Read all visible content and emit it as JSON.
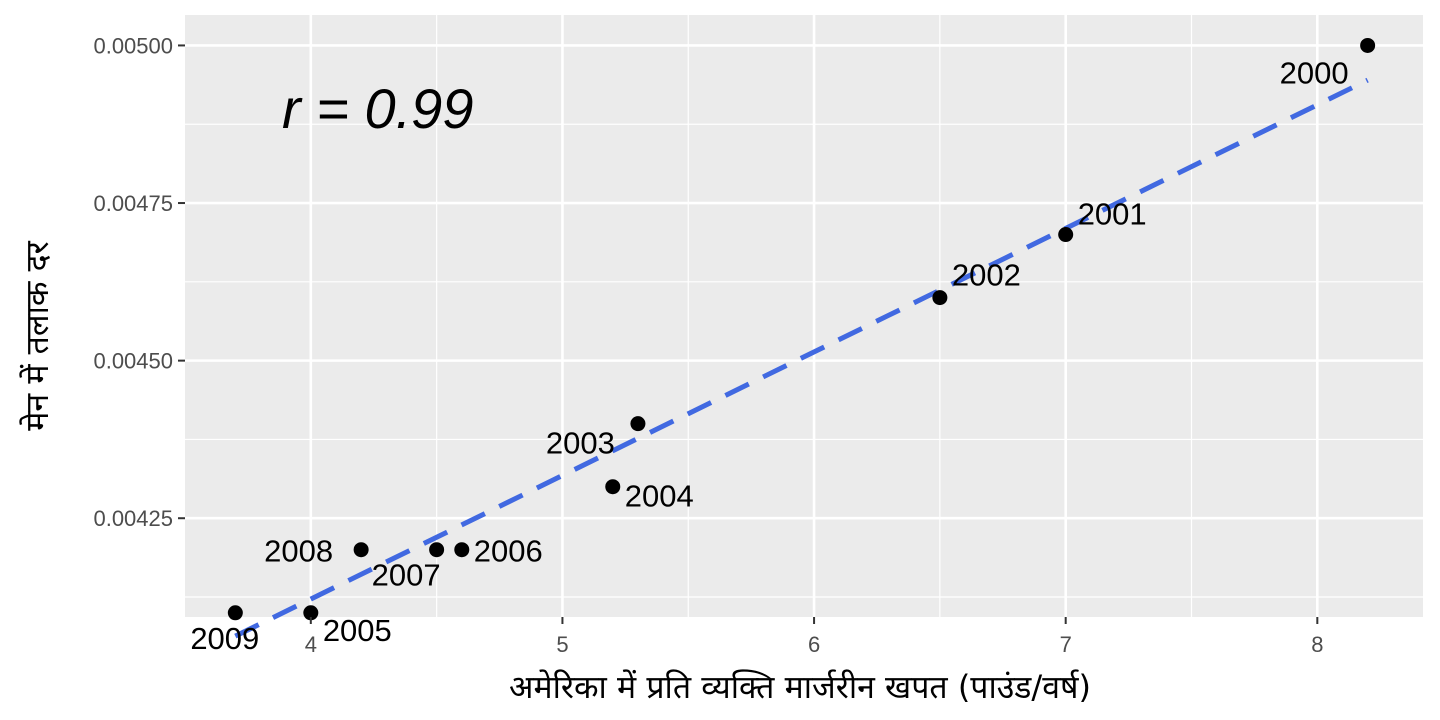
{
  "chart_data": {
    "type": "scatter",
    "title": "",
    "xlabel": "अमेरिका में प्रति व्यक्ति मार्जरीन खपत (पाउंड/वर्ष)",
    "ylabel": "मेन में तलाक दर",
    "annotation": "r = 0.99",
    "xlim": [
      3.5,
      8.42
    ],
    "ylim": [
      0.0040933,
      0.0050483
    ],
    "x_ticks": [
      4,
      5,
      6,
      7,
      8
    ],
    "x_tick_labels": [
      "4",
      "5",
      "6",
      "7",
      "8"
    ],
    "y_ticks": [
      0.00425,
      0.0045,
      0.00475,
      0.005
    ],
    "y_tick_labels": [
      "0.00425",
      "0.00450",
      "0.00475",
      "0.00500"
    ],
    "grid": true,
    "points": [
      {
        "label": "2000",
        "x": 8.2,
        "y": 0.005
      },
      {
        "label": "2001",
        "x": 7.0,
        "y": 0.0047
      },
      {
        "label": "2002",
        "x": 6.5,
        "y": 0.0046
      },
      {
        "label": "2003",
        "x": 5.3,
        "y": 0.0044
      },
      {
        "label": "2004",
        "x": 5.2,
        "y": 0.0043
      },
      {
        "label": "2005",
        "x": 4.0,
        "y": 0.0041
      },
      {
        "label": "2006",
        "x": 4.6,
        "y": 0.0042
      },
      {
        "label": "2007",
        "x": 4.5,
        "y": 0.0042
      },
      {
        "label": "2008",
        "x": 4.2,
        "y": 0.0042
      },
      {
        "label": "2009",
        "x": 3.7,
        "y": 0.0041
      }
    ],
    "trendline": {
      "style": "dashed",
      "x": [
        3.7,
        8.2
      ],
      "y": [
        0.004063,
        0.004945
      ]
    },
    "colors": {
      "points": "#000000",
      "trendline": "#4169e1",
      "panel": "#ebebeb",
      "grid": "#ffffff"
    }
  }
}
